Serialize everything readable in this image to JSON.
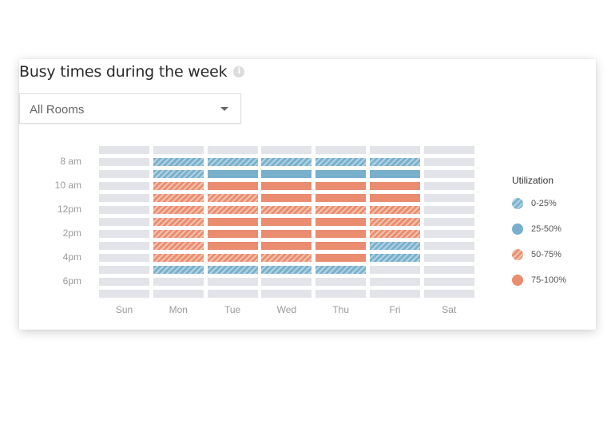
{
  "header": {
    "title": "Busy times during the week",
    "info_icon": "info-icon"
  },
  "filter": {
    "selected": "All Rooms",
    "caret_icon": "caret-down-icon"
  },
  "legend": {
    "title": "Utilization",
    "items": [
      {
        "key": "b1",
        "label": "0-25%",
        "pattern": "hatched",
        "color": "#7ab1cc"
      },
      {
        "key": "b2",
        "label": "25-50%",
        "pattern": "solid",
        "color": "#78afcb"
      },
      {
        "key": "o2",
        "label": "50-75%",
        "pattern": "hatched",
        "color": "#e98f71"
      },
      {
        "key": "o3",
        "label": "75-100%",
        "pattern": "solid",
        "color": "#e98c6f"
      }
    ]
  },
  "colors": {
    "empty": "#e3e4e9",
    "blue_light": "#b3d3e3",
    "blue": "#78afcb",
    "orange_light": "#f4c2ae",
    "orange": "#e98c6f",
    "axis_label": "#9a9a9a"
  },
  "chart_data": {
    "type": "heatmap",
    "title": "Busy times during the week",
    "filter": "All Rooms",
    "xlabel": "",
    "ylabel": "",
    "x_categories": [
      "Sun",
      "Mon",
      "Tue",
      "Wed",
      "Thu",
      "Fri",
      "Sat"
    ],
    "y_tick_labels": [
      {
        "row": 1,
        "label": "8 am"
      },
      {
        "row": 3,
        "label": "10 am"
      },
      {
        "row": 5,
        "label": "12pm"
      },
      {
        "row": 7,
        "label": "2pm"
      },
      {
        "row": 9,
        "label": "4pm"
      },
      {
        "row": 11,
        "label": "6pm"
      }
    ],
    "row_count": 13,
    "legend_title": "Utilization",
    "levels": {
      "e": "none",
      "b1": "0-25%",
      "b2": "25-50%",
      "o2": "50-75%",
      "o3": "75-100%"
    },
    "columns": [
      {
        "day": "Sun",
        "cells": [
          "e",
          "e",
          "e",
          "e",
          "e",
          "e",
          "e",
          "e",
          "e",
          "e",
          "e",
          "e",
          "e"
        ]
      },
      {
        "day": "Mon",
        "cells": [
          "e",
          "b1",
          "b1",
          "o2",
          "o2",
          "o2",
          "o2",
          "o2",
          "o2",
          "o2",
          "b1",
          "e",
          "e"
        ]
      },
      {
        "day": "Tue",
        "cells": [
          "e",
          "b1",
          "b2",
          "o3",
          "o2",
          "o2",
          "o3",
          "o3",
          "o3",
          "o2",
          "b1",
          "e",
          "e"
        ]
      },
      {
        "day": "Wed",
        "cells": [
          "e",
          "b1",
          "b2",
          "o3",
          "o3",
          "o2",
          "o3",
          "o3",
          "o3",
          "o2",
          "b1",
          "e",
          "e"
        ]
      },
      {
        "day": "Thu",
        "cells": [
          "e",
          "b1",
          "b2",
          "o3",
          "o3",
          "o2",
          "o3",
          "o3",
          "o3",
          "o3",
          "b1",
          "e",
          "e"
        ]
      },
      {
        "day": "Fri",
        "cells": [
          "e",
          "b1",
          "b2",
          "o3",
          "o3",
          "o2",
          "o2",
          "o2",
          "b1",
          "b1",
          "e",
          "e",
          "e"
        ]
      },
      {
        "day": "Sat",
        "cells": [
          "e",
          "e",
          "e",
          "e",
          "e",
          "e",
          "e",
          "e",
          "e",
          "e",
          "e",
          "e",
          "e"
        ]
      }
    ],
    "legend_position": "right",
    "grid": false
  }
}
